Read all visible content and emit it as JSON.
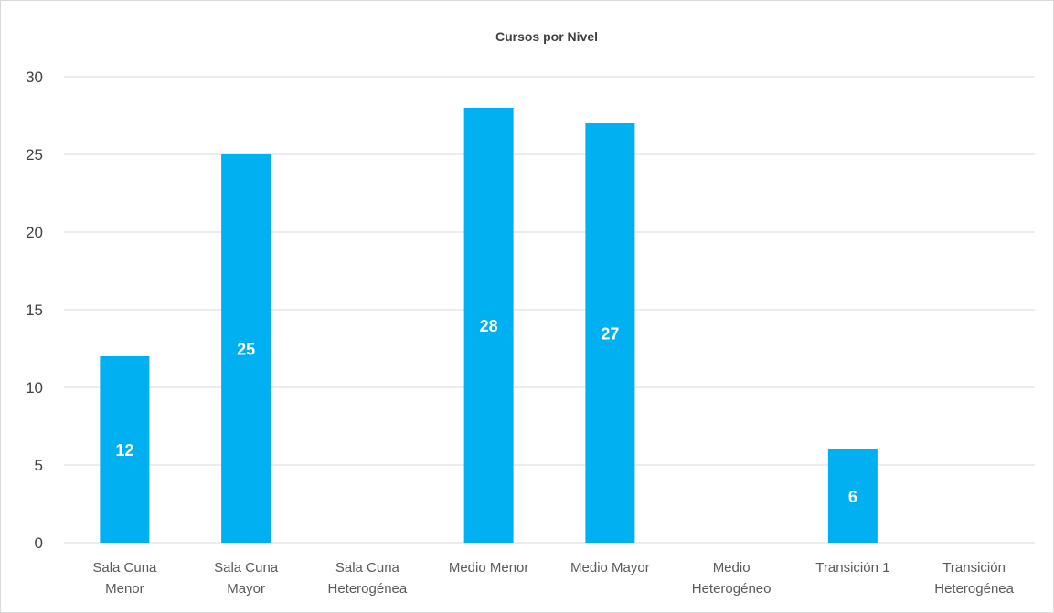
{
  "chart_data": {
    "type": "bar",
    "title": "Cursos por Nivel",
    "categories": [
      [
        "Sala Cuna",
        "Menor"
      ],
      [
        "Sala Cuna",
        "Mayor"
      ],
      [
        "Sala Cuna",
        "Heterogénea"
      ],
      [
        "Medio Menor"
      ],
      [
        "Medio Mayor"
      ],
      [
        "Medio",
        "Heterogéneo"
      ],
      [
        "Transición 1"
      ],
      [
        "Transición",
        "Heterogénea"
      ]
    ],
    "values": [
      12,
      25,
      0,
      28,
      27,
      0,
      6,
      0
    ],
    "data_labels": [
      "12",
      "25",
      "",
      "28",
      "27",
      "",
      "6",
      ""
    ],
    "ylim": [
      0,
      30
    ],
    "yticks": [
      "0",
      "5",
      "10",
      "15",
      "20",
      "25",
      "30"
    ],
    "grid": true,
    "legend": "none",
    "bar_color": "#00b0f0",
    "grid_color": "#d9d9d9"
  }
}
